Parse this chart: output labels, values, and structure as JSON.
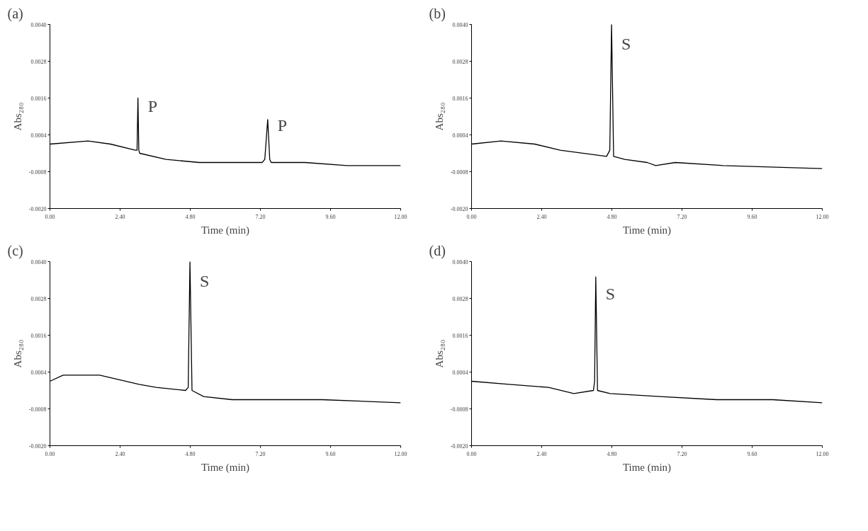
{
  "chart_data": [
    {
      "type": "line",
      "title": "(a)",
      "xlabel": "Time (min)",
      "ylabel": "Abs₂₈₀",
      "color": "#000000",
      "x": [
        0,
        1.3,
        2.07,
        2.92,
        2.98,
        3.01,
        3.04,
        3.07,
        3.97,
        5.11,
        6.83,
        7.26,
        7.35,
        7.45,
        7.52,
        7.57,
        8.73,
        10.16,
        12.0
      ],
      "values": [
        0.0001,
        0.0002,
        0.0001,
        -0.0001,
        -0.0001,
        0.0016,
        -0.0001,
        -0.0002,
        -0.0004,
        -0.0005,
        -0.0005,
        -0.0005,
        -0.0004,
        0.0009,
        -0.0004,
        -0.0005,
        -0.0005,
        -0.0006,
        -0.0006
      ],
      "xlim": [
        0,
        12
      ],
      "ylim": [
        -0.002,
        0.004
      ],
      "xticks": [
        {
          "value": 0,
          "label": "0.00"
        },
        {
          "value": 2.4,
          "label": "2.40"
        },
        {
          "value": 4.8,
          "label": "4.80"
        },
        {
          "value": 7.2,
          "label": "7.20"
        },
        {
          "value": 9.6,
          "label": "9.60"
        },
        {
          "value": 12,
          "label": "12.00"
        }
      ],
      "yticks": [
        {
          "value": -0.002,
          "label": "-0.0020"
        },
        {
          "value": -0.0008,
          "label": "-0.0008"
        },
        {
          "value": 0.0004,
          "label": "0.0004"
        },
        {
          "value": 0.0016,
          "label": "0.0016"
        },
        {
          "value": 0.0028,
          "label": "0.0028"
        },
        {
          "value": 0.004,
          "label": "0.0040"
        }
      ],
      "annotations": [
        "P",
        "P"
      ]
    },
    {
      "type": "line",
      "title": "(b)",
      "xlabel": "Time (min)",
      "ylabel": "Abs₂₈₀",
      "color": "#000000",
      "x": [
        0,
        1.01,
        2.16,
        3.03,
        4.62,
        4.73,
        4.79,
        4.86,
        5.24,
        6.01,
        6.3,
        6.97,
        8.61,
        12.0
      ],
      "values": [
        0.0001,
        0.0002,
        0.0001,
        -0.0001,
        -0.0003,
        -0.0001,
        0.004,
        -0.0003,
        -0.0004,
        -0.0005,
        -0.0006,
        -0.0005,
        -0.0006,
        -0.0007
      ],
      "xlim": [
        0,
        12
      ],
      "ylim": [
        -0.002,
        0.004
      ],
      "xticks": [
        {
          "value": 0,
          "label": "0.00"
        },
        {
          "value": 2.4,
          "label": "2.40"
        },
        {
          "value": 4.8,
          "label": "4.80"
        },
        {
          "value": 7.2,
          "label": "7.20"
        },
        {
          "value": 9.6,
          "label": "9.60"
        },
        {
          "value": 12,
          "label": "12.00"
        }
      ],
      "yticks": [
        {
          "value": -0.002,
          "label": "-0.0020"
        },
        {
          "value": -0.0008,
          "label": "-0.0008"
        },
        {
          "value": 0.0004,
          "label": "0.0004"
        },
        {
          "value": 0.0016,
          "label": "0.0016"
        },
        {
          "value": 0.0028,
          "label": "0.0028"
        },
        {
          "value": 0.004,
          "label": "0.0040"
        }
      ],
      "annotations": [
        "S"
      ]
    },
    {
      "type": "line",
      "title": "(c)",
      "xlabel": "Time (min)",
      "ylabel": "Abs₂₈₀",
      "color": "#000000",
      "x": [
        0,
        0.45,
        1.7,
        3.05,
        3.63,
        4.64,
        4.73,
        4.79,
        4.86,
        5.26,
        6.23,
        7.86,
        9.31,
        12.0
      ],
      "values": [
        0.0001,
        0.0003,
        0.0003,
        0.0,
        -0.0001,
        -0.0002,
        -0.0001,
        0.004,
        -0.0002,
        -0.0004,
        -0.0005,
        -0.0005,
        -0.0005,
        -0.0006
      ],
      "xlim": [
        0,
        12
      ],
      "ylim": [
        -0.002,
        0.004
      ],
      "xticks": [
        {
          "value": 0,
          "label": "0.00"
        },
        {
          "value": 2.4,
          "label": "2.40"
        },
        {
          "value": 4.8,
          "label": "4.80"
        },
        {
          "value": 7.2,
          "label": "7.20"
        },
        {
          "value": 9.6,
          "label": "9.60"
        },
        {
          "value": 12,
          "label": "12.00"
        }
      ],
      "yticks": [
        {
          "value": -0.002,
          "label": "-0.0020"
        },
        {
          "value": -0.0008,
          "label": "-0.0008"
        },
        {
          "value": 0.0004,
          "label": "0.0004"
        },
        {
          "value": 0.0016,
          "label": "0.0016"
        },
        {
          "value": 0.0028,
          "label": "0.0028"
        },
        {
          "value": 0.004,
          "label": "0.0040"
        }
      ],
      "annotations": [
        "S"
      ]
    },
    {
      "type": "line",
      "title": "(d)",
      "xlabel": "Time (min)",
      "ylabel": "Abs₂₈₀",
      "color": "#000000",
      "x": [
        0,
        1.29,
        2.63,
        3.5,
        4.17,
        4.21,
        4.25,
        4.31,
        4.74,
        6.46,
        8.38,
        10.3,
        12.0
      ],
      "values": [
        0.0001,
        0.0,
        -0.0001,
        -0.0003,
        -0.0002,
        0.0001,
        0.0035,
        -0.0002,
        -0.0003,
        -0.0004,
        -0.0005,
        -0.0005,
        -0.0006
      ],
      "xlim": [
        0,
        12
      ],
      "ylim": [
        -0.002,
        0.004
      ],
      "xticks": [
        {
          "value": 0,
          "label": "0.00"
        },
        {
          "value": 2.4,
          "label": "2.40"
        },
        {
          "value": 4.8,
          "label": "4.80"
        },
        {
          "value": 7.2,
          "label": "7.20"
        },
        {
          "value": 9.6,
          "label": "9.60"
        },
        {
          "value": 12,
          "label": "12.00"
        }
      ],
      "yticks": [
        {
          "value": -0.002,
          "label": "-0.0020"
        },
        {
          "value": -0.0008,
          "label": "-0.0008"
        },
        {
          "value": 0.0004,
          "label": "0.0004"
        },
        {
          "value": 0.0016,
          "label": "0.0016"
        },
        {
          "value": 0.0028,
          "label": "0.0028"
        },
        {
          "value": 0.004,
          "label": "0.0040"
        }
      ],
      "annotations": [
        "S"
      ]
    }
  ]
}
